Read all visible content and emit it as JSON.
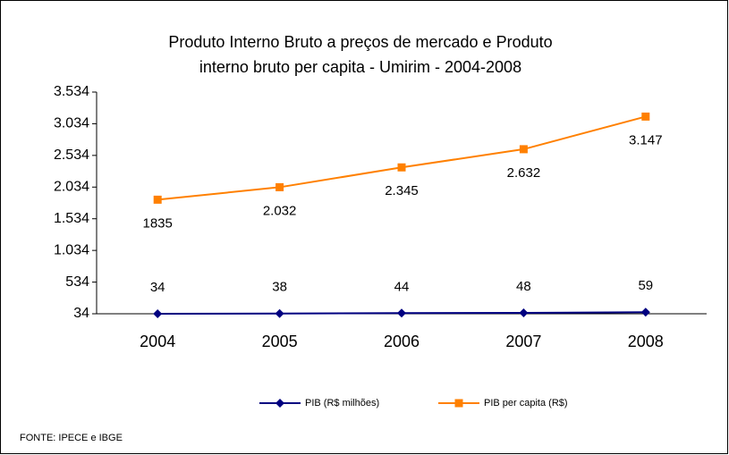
{
  "chart_data": {
    "type": "line",
    "title": [
      "Produto Interno Bruto a preços de mercado  e  Produto",
      "interno bruto per capita - Umirim - 2004-2008"
    ],
    "categories": [
      "2004",
      "2005",
      "2006",
      "2007",
      "2008"
    ],
    "series": [
      {
        "name": "PIB (R$ milhões)",
        "color": "#000080",
        "marker": "diamond",
        "values": [
          34,
          38,
          44,
          48,
          59
        ]
      },
      {
        "name": "PIB per capita (R$)",
        "color": "#ff8000",
        "marker": "square",
        "values": [
          1835,
          2032,
          2345,
          2632,
          3147
        ],
        "value_labels": [
          "1835",
          "2.032",
          "2.345",
          "2.632",
          "3.147"
        ]
      }
    ],
    "ylim": [
      34,
      3534
    ],
    "yticks": [
      34,
      534,
      {
        "value": 1034,
        "label": "1.034"
      },
      {
        "value": 1534,
        "label": "1.534"
      },
      {
        "value": 2034,
        "label": "2.034"
      },
      {
        "value": 2534,
        "label": "2.534"
      },
      {
        "value": 3034,
        "label": "3.034"
      },
      {
        "value": 3534,
        "label": "3.534"
      }
    ],
    "grid": false,
    "legend": "bottom",
    "source": "FONTE: IPECE e IBGE"
  }
}
